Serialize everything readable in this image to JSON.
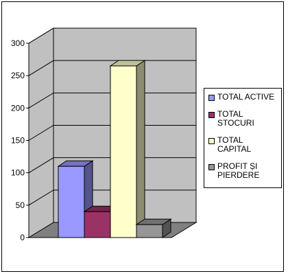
{
  "chart_data": {
    "type": "bar",
    "title": "",
    "xlabel": "",
    "ylabel": "",
    "ylim": [
      0,
      300
    ],
    "yticks": [
      0,
      50,
      100,
      150,
      200,
      250,
      300
    ],
    "grid": true,
    "legend_position": "right",
    "categories": [
      "TOTAL ACTIVE",
      "TOTAL STOCURI",
      "TOTAL CAPITAL",
      "PROFIT ȘI PIERDERE"
    ],
    "values": [
      110,
      40,
      265,
      20
    ],
    "colors": [
      "#9999ff",
      "#993366",
      "#ffffcc",
      "#969696"
    ]
  },
  "legend": {
    "items": [
      {
        "label": "TOTAL ACTIVE",
        "color": "#9999ff"
      },
      {
        "label": "TOTAL STOCURI",
        "color": "#993366"
      },
      {
        "label": "TOTAL CAPITAL",
        "color": "#ffffcc"
      },
      {
        "label": "PROFIT ȘI PIERDERE",
        "color": "#969696"
      }
    ]
  }
}
